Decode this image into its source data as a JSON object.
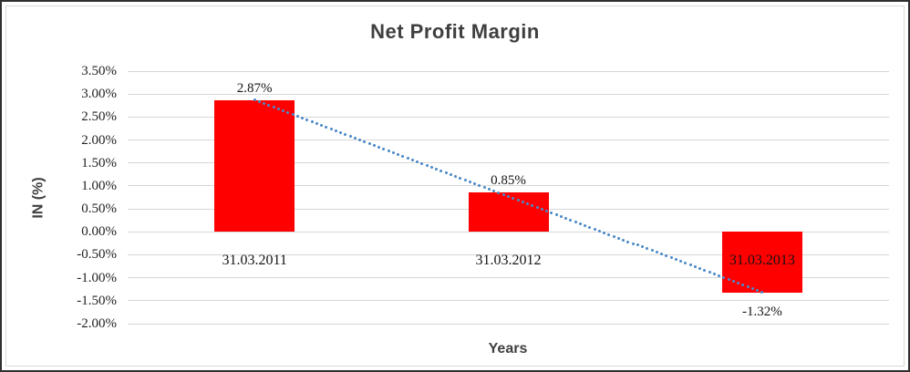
{
  "chart_data": {
    "type": "bar",
    "title": "Net Profit Margin",
    "xlabel": "Years",
    "ylabel": "IN (%)",
    "categories": [
      "31.03.2011",
      "31.03.2012",
      "31.03.2013"
    ],
    "values": [
      2.87,
      0.85,
      -1.32
    ],
    "data_labels": [
      "2.87%",
      "0.85%",
      "-1.32%"
    ],
    "y_ticks": [
      {
        "label": "3.50%",
        "value": 3.5
      },
      {
        "label": "3.00%",
        "value": 3.0
      },
      {
        "label": "2.50%",
        "value": 2.5
      },
      {
        "label": "2.00%",
        "value": 2.0
      },
      {
        "label": "1.50%",
        "value": 1.5
      },
      {
        "label": "1.00%",
        "value": 1.0
      },
      {
        "label": "0.50%",
        "value": 0.5
      },
      {
        "label": "0.00%",
        "value": 0.0
      },
      {
        "label": "-0.50%",
        "value": -0.5
      },
      {
        "label": "-1.00%",
        "value": -1.0
      },
      {
        "label": "-1.50%",
        "value": -1.5
      },
      {
        "label": "-2.00%",
        "value": -2.0
      }
    ],
    "ylim": [
      -2.0,
      3.5
    ],
    "grid": true,
    "legend": false,
    "bar_color": "#ff0000",
    "trendline": {
      "type": "linear",
      "style": "dotted",
      "color": "#4a89c8",
      "from_point": {
        "category_index": 0,
        "value": 2.87
      },
      "to_point": {
        "category_index": 2,
        "value": -1.32
      }
    }
  }
}
